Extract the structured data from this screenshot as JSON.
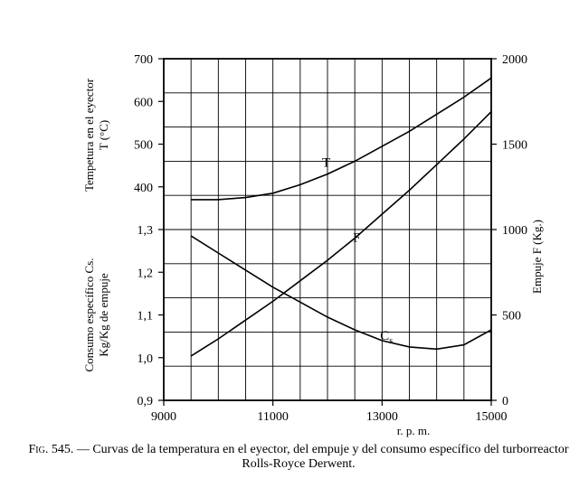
{
  "chart": {
    "type": "line",
    "background_color": "#ffffff",
    "grid_color": "#000000",
    "axis_color": "#000000",
    "line_color": "#000000",
    "line_width": 1.6,
    "grid_width": 0.9,
    "font_family": "Times New Roman",
    "x": {
      "label": "r. p. m.",
      "label_fontsize": 13,
      "min": 9000,
      "max": 15000,
      "tick_step": 2000,
      "ticks": [
        9000,
        11000,
        13000,
        15000
      ],
      "minor_step": 500
    },
    "y_left_upper": {
      "label": "Tempetura en el eyector\nT (°C)",
      "min": 300,
      "max": 700,
      "ticks": [
        400,
        500,
        600,
        700
      ],
      "minor_step": 50,
      "label_fontsize": 13
    },
    "y_left_lower": {
      "label": "Consumo específico Cs.\nKg/Kg de empuje",
      "min": 0.9,
      "max": 1.3,
      "ticks": [
        0.9,
        1.0,
        1.1,
        1.2,
        1.3
      ],
      "minor_step": 0.05,
      "label_fontsize": 13
    },
    "y_right": {
      "label": "Empuje F (Kg.)",
      "min": 0,
      "max": 2000,
      "ticks": [
        0,
        500,
        1000,
        1500,
        2000
      ],
      "label_fontsize": 13
    },
    "series": {
      "T": {
        "label": "T",
        "axis": "y_left_upper",
        "x": [
          9500,
          10000,
          10500,
          11000,
          11500,
          12000,
          12500,
          13000,
          13500,
          14000,
          14500,
          15000
        ],
        "y": [
          370,
          370,
          375,
          385,
          405,
          430,
          460,
          495,
          530,
          570,
          610,
          655
        ]
      },
      "F": {
        "label": "F",
        "axis": "y_right",
        "x": [
          9500,
          10000,
          10500,
          11000,
          11500,
          12000,
          12500,
          13000,
          13500,
          14000,
          14500,
          15000
        ],
        "y": [
          260,
          360,
          470,
          580,
          700,
          820,
          950,
          1090,
          1230,
          1380,
          1530,
          1690
        ]
      },
      "Cs": {
        "label": "Cs",
        "axis": "y_left_lower",
        "x": [
          9500,
          10000,
          10500,
          11000,
          11500,
          12000,
          12500,
          13000,
          13500,
          14000,
          14500,
          15000
        ],
        "y": [
          1.285,
          1.245,
          1.205,
          1.165,
          1.13,
          1.095,
          1.065,
          1.04,
          1.025,
          1.02,
          1.03,
          1.065
        ]
      }
    },
    "series_label_pos": {
      "T": {
        "x": 12000,
        "y": "above"
      },
      "F": {
        "x": 12300,
        "y": "right"
      },
      "Cs": {
        "x": 12800,
        "y": "right"
      }
    }
  },
  "caption": {
    "fig_label": "Fig. 545.",
    "text": "— Curvas de la temperatura en el eyector, del empuje y del consumo específico del turborreactor Rolls-Royce Derwent.",
    "fontsize": 14
  }
}
